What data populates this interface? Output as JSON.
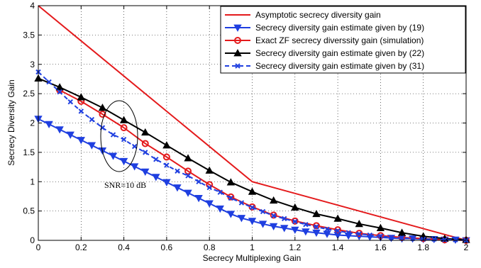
{
  "chart_data": {
    "type": "line",
    "xlabel": "Secrecy Multiplexing Gain",
    "ylabel": "Secrecy Diversity Gain",
    "xlim": [
      0,
      2
    ],
    "ylim": [
      0,
      4
    ],
    "xticks": [
      "0",
      "0.2",
      "0.4",
      "0.6",
      "0.8",
      "1",
      "1.2",
      "1.4",
      "1.6",
      "1.8",
      "2"
    ],
    "yticks": [
      "0",
      "0.5",
      "1",
      "1.5",
      "2",
      "2.5",
      "3",
      "3.5",
      "4"
    ],
    "grid": true,
    "legend_position": "top-right",
    "annotation": {
      "text": "SNR=10 dB",
      "x": 0.39,
      "y": 1.75
    },
    "series": [
      {
        "name": "Asymptotic secrecy diversity gain",
        "color": "#e41a1c",
        "style": "solid",
        "marker": "none",
        "x": [
          0,
          1,
          2
        ],
        "y": [
          4,
          1,
          0
        ]
      },
      {
        "name": "Secrecy diversity gain estimate given by (19)",
        "color": "#1f3fe0",
        "style": "solid",
        "marker": "triangle-down",
        "x": [
          0,
          0.05,
          0.1,
          0.15,
          0.2,
          0.25,
          0.3,
          0.35,
          0.4,
          0.45,
          0.5,
          0.55,
          0.6,
          0.65,
          0.7,
          0.75,
          0.8,
          0.85,
          0.9,
          0.95,
          1.0,
          1.05,
          1.1,
          1.15,
          1.2,
          1.25,
          1.3,
          1.35,
          1.4,
          1.45,
          1.5,
          1.55,
          1.6,
          1.65,
          1.7,
          1.75,
          1.8,
          1.85,
          1.9,
          1.95,
          2.0
        ],
        "y": [
          2.07,
          1.98,
          1.89,
          1.8,
          1.71,
          1.62,
          1.53,
          1.44,
          1.35,
          1.26,
          1.17,
          1.08,
          0.99,
          0.9,
          0.81,
          0.72,
          0.63,
          0.54,
          0.45,
          0.38,
          0.33,
          0.28,
          0.24,
          0.21,
          0.18,
          0.15,
          0.13,
          0.11,
          0.09,
          0.08,
          0.07,
          0.06,
          0.05,
          0.04,
          0.03,
          0.03,
          0.02,
          0.02,
          0.01,
          0.01,
          0.0
        ]
      },
      {
        "name": "Exact ZF secrecy diverssity gain (simulation)",
        "color": "#e41a1c",
        "style": "solid",
        "marker": "circle",
        "x": [
          0.1,
          0.2,
          0.3,
          0.4,
          0.5,
          0.6,
          0.7,
          0.8,
          0.9,
          1.0,
          1.1,
          1.2,
          1.3,
          1.4,
          1.5,
          1.6,
          1.7,
          1.8,
          1.9,
          2.0
        ],
        "y": [
          2.56,
          2.37,
          2.15,
          1.92,
          1.65,
          1.42,
          1.18,
          0.95,
          0.74,
          0.57,
          0.43,
          0.33,
          0.25,
          0.18,
          0.12,
          0.08,
          0.05,
          0.03,
          0.01,
          0.0
        ]
      },
      {
        "name": "Secrecy diversity gain estimate given by (22)",
        "color": "#000000",
        "style": "solid",
        "marker": "triangle-up",
        "x": [
          0,
          0.1,
          0.2,
          0.3,
          0.4,
          0.5,
          0.6,
          0.7,
          0.8,
          0.9,
          1.0,
          1.1,
          1.2,
          1.3,
          1.4,
          1.5,
          1.6,
          1.7,
          1.8,
          1.9,
          2.0
        ],
        "y": [
          2.76,
          2.61,
          2.44,
          2.26,
          2.05,
          1.84,
          1.62,
          1.4,
          1.19,
          0.99,
          0.83,
          0.68,
          0.56,
          0.45,
          0.37,
          0.28,
          0.21,
          0.13,
          0.07,
          0.03,
          0.01
        ]
      },
      {
        "name": "Secrecy diversity gain estimate given by (31)",
        "color": "#1f3fe0",
        "style": "dashed",
        "marker": "x",
        "x": [
          0,
          0.05,
          0.1,
          0.15,
          0.2,
          0.25,
          0.3,
          0.35,
          0.4,
          0.45,
          0.5,
          0.55,
          0.6,
          0.65,
          0.7,
          0.75,
          0.8,
          0.85,
          0.9,
          0.95,
          1.0,
          1.05,
          1.1,
          1.15,
          1.2,
          1.25,
          1.3,
          1.35,
          1.4,
          1.45,
          1.5,
          1.55,
          1.6,
          1.65,
          1.7,
          1.75,
          1.8,
          1.85,
          1.9,
          1.95,
          2.0
        ],
        "y": [
          2.87,
          2.7,
          2.53,
          2.36,
          2.2,
          2.06,
          1.92,
          1.8,
          1.72,
          1.6,
          1.5,
          1.38,
          1.28,
          1.18,
          1.1,
          1.0,
          0.9,
          0.82,
          0.72,
          0.64,
          0.56,
          0.49,
          0.42,
          0.37,
          0.32,
          0.27,
          0.23,
          0.19,
          0.16,
          0.13,
          0.11,
          0.09,
          0.07,
          0.05,
          0.04,
          0.03,
          0.02,
          0.02,
          0.01,
          0.01,
          0.0
        ]
      }
    ]
  }
}
